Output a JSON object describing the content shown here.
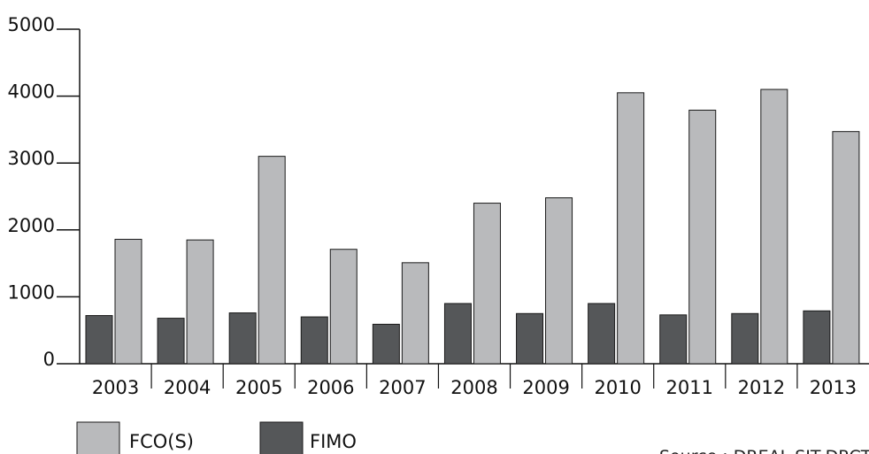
{
  "chart_data": {
    "type": "bar",
    "title": "",
    "xlabel": "",
    "ylabel": "",
    "ylim": [
      0,
      5000
    ],
    "yticks": [
      0,
      1000,
      2000,
      3000,
      4000,
      5000
    ],
    "grid": false,
    "legend_placement": "bottom-left",
    "categories": [
      "2003",
      "2004",
      "2005",
      "2006",
      "2007",
      "2008",
      "2009",
      "2010",
      "2011",
      "2012",
      "2013"
    ],
    "series": [
      {
        "name": "FIMO",
        "color": "#555759",
        "values": [
          720,
          680,
          760,
          700,
          590,
          900,
          750,
          900,
          730,
          750,
          790
        ]
      },
      {
        "name": "FCO(S)",
        "color": "#b9babc",
        "values": [
          1860,
          1850,
          3100,
          1710,
          1510,
          2400,
          2480,
          4050,
          3790,
          4100,
          3470
        ]
      }
    ],
    "legend": [
      {
        "label": "FCO(S)",
        "color": "#b9babc"
      },
      {
        "label": "FIMO",
        "color": "#555759"
      }
    ],
    "source": "Source : DREAL SIT-DRCT"
  }
}
